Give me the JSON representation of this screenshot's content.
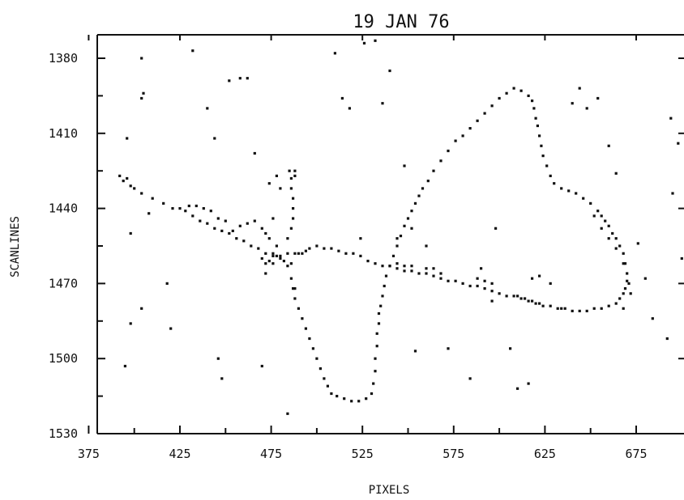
{
  "chart_data": {
    "type": "scatter",
    "title": "19 JAN 76",
    "xlabel": "PIXELS",
    "ylabel": "SCANLINES",
    "xlim": [
      375,
      705
    ],
    "ylim": [
      1530,
      1365
    ],
    "y_inverted": true,
    "grid": false,
    "legend": "none",
    "x_ticks": [
      375,
      425,
      475,
      525,
      575,
      625,
      675
    ],
    "x_tick_labels": [
      "375",
      "425",
      "475",
      "525",
      "575",
      "625",
      "675"
    ],
    "y_ticks": [
      1380,
      1410,
      1440,
      1470,
      1500,
      1530
    ],
    "y_tick_labels": [
      "1380",
      "1410",
      "1440",
      "1470",
      "1500",
      "1530"
    ],
    "marker_color": "#111111",
    "series": [
      {
        "points": [
          [
            392,
            1427
          ],
          [
            394,
            1429
          ],
          [
            396,
            1428
          ],
          [
            398,
            1431
          ],
          [
            400,
            1432
          ],
          [
            404,
            1434
          ],
          [
            410,
            1436
          ],
          [
            416,
            1438
          ],
          [
            421,
            1440
          ],
          [
            425,
            1440
          ],
          [
            428,
            1441
          ],
          [
            432,
            1443
          ],
          [
            436,
            1445
          ],
          [
            440,
            1446
          ],
          [
            444,
            1448
          ],
          [
            448,
            1449
          ],
          [
            452,
            1450
          ],
          [
            456,
            1452
          ],
          [
            460,
            1453
          ],
          [
            464,
            1455
          ],
          [
            468,
            1456
          ],
          [
            472,
            1458
          ],
          [
            476,
            1458
          ],
          [
            480,
            1459
          ],
          [
            484,
            1458
          ],
          [
            488,
            1458
          ],
          [
            492,
            1458
          ],
          [
            496,
            1456
          ],
          [
            500,
            1455
          ],
          [
            504,
            1456
          ],
          [
            508,
            1456
          ],
          [
            512,
            1457
          ],
          [
            516,
            1458
          ],
          [
            520,
            1458
          ],
          [
            524,
            1459
          ],
          [
            528,
            1461
          ],
          [
            532,
            1462
          ],
          [
            536,
            1463
          ],
          [
            540,
            1463
          ],
          [
            544,
            1464
          ],
          [
            548,
            1465
          ],
          [
            552,
            1465
          ],
          [
            556,
            1466
          ],
          [
            560,
            1466
          ],
          [
            564,
            1467
          ],
          [
            568,
            1468
          ],
          [
            572,
            1469
          ],
          [
            576,
            1469
          ],
          [
            580,
            1470
          ],
          [
            584,
            1471
          ],
          [
            588,
            1471
          ],
          [
            592,
            1472
          ],
          [
            596,
            1473
          ],
          [
            600,
            1474
          ],
          [
            604,
            1475
          ],
          [
            608,
            1475
          ],
          [
            612,
            1476
          ],
          [
            616,
            1477
          ],
          [
            620,
            1478
          ],
          [
            624,
            1479
          ],
          [
            628,
            1479
          ],
          [
            632,
            1480
          ],
          [
            636,
            1480
          ],
          [
            640,
            1481
          ],
          [
            644,
            1481
          ],
          [
            648,
            1481
          ],
          [
            652,
            1480
          ],
          [
            656,
            1480
          ],
          [
            660,
            1479
          ],
          [
            664,
            1478
          ],
          [
            666,
            1476
          ],
          [
            668,
            1474
          ],
          [
            669,
            1472
          ],
          [
            670,
            1469
          ],
          [
            670,
            1466
          ],
          [
            669,
            1462
          ],
          [
            668,
            1458
          ],
          [
            666,
            1455
          ],
          [
            664,
            1452
          ],
          [
            662,
            1450
          ],
          [
            660,
            1447
          ],
          [
            658,
            1445
          ],
          [
            656,
            1443
          ],
          [
            654,
            1441
          ],
          [
            650,
            1438
          ],
          [
            646,
            1436
          ],
          [
            642,
            1434
          ],
          [
            638,
            1433
          ],
          [
            634,
            1432
          ],
          [
            630,
            1430
          ],
          [
            628,
            1427
          ],
          [
            626,
            1423
          ],
          [
            624,
            1419
          ],
          [
            623,
            1415
          ],
          [
            622,
            1411
          ],
          [
            621,
            1407
          ],
          [
            620,
            1404
          ],
          [
            619,
            1400
          ],
          [
            618,
            1397
          ],
          [
            616,
            1395
          ],
          [
            612,
            1393
          ],
          [
            608,
            1392
          ],
          [
            604,
            1394
          ],
          [
            600,
            1396
          ],
          [
            596,
            1399
          ],
          [
            592,
            1402
          ],
          [
            588,
            1405
          ],
          [
            584,
            1408
          ],
          [
            580,
            1411
          ],
          [
            576,
            1413
          ],
          [
            572,
            1417
          ],
          [
            568,
            1421
          ],
          [
            564,
            1425
          ],
          [
            561,
            1429
          ],
          [
            558,
            1432
          ],
          [
            556,
            1435
          ],
          [
            554,
            1438
          ],
          [
            552,
            1441
          ],
          [
            550,
            1444
          ],
          [
            548,
            1447
          ],
          [
            546,
            1451
          ],
          [
            544,
            1455
          ],
          [
            542,
            1459
          ],
          [
            540,
            1463
          ],
          [
            538,
            1467
          ],
          [
            537,
            1471
          ],
          [
            536,
            1475
          ],
          [
            535,
            1479
          ],
          [
            534,
            1482
          ],
          [
            534,
            1486
          ],
          [
            533,
            1490
          ],
          [
            533,
            1495
          ],
          [
            532,
            1500
          ],
          [
            532,
            1505
          ],
          [
            531,
            1510
          ],
          [
            530,
            1514
          ],
          [
            527,
            1516
          ],
          [
            523,
            1517
          ],
          [
            519,
            1517
          ],
          [
            515,
            1516
          ],
          [
            511,
            1515
          ],
          [
            508,
            1514
          ],
          [
            506,
            1511
          ],
          [
            504,
            1508
          ],
          [
            502,
            1504
          ],
          [
            500,
            1500
          ],
          [
            498,
            1496
          ],
          [
            496,
            1492
          ],
          [
            494,
            1488
          ],
          [
            492,
            1484
          ],
          [
            490,
            1480
          ],
          [
            488,
            1476
          ],
          [
            487,
            1472
          ],
          [
            486,
            1468
          ],
          [
            478,
            1455
          ],
          [
            474,
            1452
          ],
          [
            472,
            1450
          ],
          [
            470,
            1448
          ],
          [
            480,
            1460
          ],
          [
            476,
            1462
          ],
          [
            466,
            1445
          ],
          [
            462,
            1446
          ],
          [
            458,
            1447
          ],
          [
            454,
            1449
          ],
          [
            450,
            1445
          ],
          [
            446,
            1444
          ],
          [
            442,
            1441
          ],
          [
            438,
            1440
          ],
          [
            434,
            1439
          ],
          [
            430,
            1439
          ],
          [
            484,
            1452
          ],
          [
            486,
            1448
          ],
          [
            487,
            1444
          ],
          [
            487,
            1440
          ],
          [
            487,
            1436
          ],
          [
            486,
            1432
          ],
          [
            486,
            1428
          ],
          [
            485,
            1425
          ],
          [
            488,
            1425
          ],
          [
            488,
            1427
          ],
          [
            470,
            1460
          ],
          [
            472,
            1462
          ],
          [
            474,
            1461
          ],
          [
            476,
            1459
          ],
          [
            478,
            1459
          ],
          [
            482,
            1461
          ],
          [
            484,
            1463
          ],
          [
            486,
            1462
          ],
          [
            490,
            1458
          ],
          [
            494,
            1457
          ],
          [
            560,
            1464
          ],
          [
            564,
            1464
          ],
          [
            568,
            1466
          ],
          [
            588,
            1468
          ],
          [
            592,
            1469
          ],
          [
            596,
            1470
          ],
          [
            652,
            1443
          ],
          [
            656,
            1448
          ],
          [
            660,
            1452
          ],
          [
            664,
            1456
          ],
          [
            668,
            1462
          ],
          [
            671,
            1470
          ],
          [
            672,
            1474
          ],
          [
            610,
            1475
          ],
          [
            614,
            1476
          ],
          [
            618,
            1477
          ],
          [
            622,
            1478
          ],
          [
            544,
            1462
          ],
          [
            548,
            1463
          ],
          [
            552,
            1463
          ],
          [
            404,
            1396
          ],
          [
            396,
            1412
          ],
          [
            395,
            1503
          ],
          [
            404,
            1480
          ],
          [
            398,
            1486
          ],
          [
            408,
            1442
          ],
          [
            398,
            1450
          ],
          [
            418,
            1470
          ],
          [
            405,
            1394
          ],
          [
            404,
            1380
          ],
          [
            420,
            1488
          ],
          [
            432,
            1377
          ],
          [
            440,
            1400
          ],
          [
            444,
            1412
          ],
          [
            446,
            1500
          ],
          [
            448,
            1508
          ],
          [
            452,
            1389
          ],
          [
            458,
            1388
          ],
          [
            462,
            1388
          ],
          [
            466,
            1418
          ],
          [
            470,
            1503
          ],
          [
            484,
            1522
          ],
          [
            488,
            1472
          ],
          [
            510,
            1378
          ],
          [
            514,
            1396
          ],
          [
            518,
            1400
          ],
          [
            524,
            1452
          ],
          [
            526,
            1374
          ],
          [
            532,
            1373
          ],
          [
            536,
            1398
          ],
          [
            540,
            1385
          ],
          [
            544,
            1452
          ],
          [
            548,
            1423
          ],
          [
            552,
            1448
          ],
          [
            554,
            1497
          ],
          [
            560,
            1455
          ],
          [
            572,
            1496
          ],
          [
            584,
            1508
          ],
          [
            590,
            1464
          ],
          [
            596,
            1477
          ],
          [
            598,
            1448
          ],
          [
            606,
            1496
          ],
          [
            610,
            1512
          ],
          [
            616,
            1510
          ],
          [
            618,
            1468
          ],
          [
            622,
            1467
          ],
          [
            628,
            1470
          ],
          [
            634,
            1480
          ],
          [
            640,
            1398
          ],
          [
            644,
            1392
          ],
          [
            648,
            1400
          ],
          [
            654,
            1396
          ],
          [
            660,
            1415
          ],
          [
            664,
            1426
          ],
          [
            668,
            1480
          ],
          [
            676,
            1454
          ],
          [
            680,
            1468
          ],
          [
            684,
            1484
          ],
          [
            692,
            1492
          ],
          [
            694,
            1404
          ],
          [
            695,
            1434
          ],
          [
            698,
            1414
          ],
          [
            700,
            1460
          ],
          [
            702,
            1476
          ],
          [
            704,
            1448
          ],
          [
            478,
            1427
          ],
          [
            480,
            1432
          ],
          [
            476,
            1444
          ],
          [
            472,
            1466
          ],
          [
            474,
            1430
          ]
        ]
      }
    ]
  }
}
